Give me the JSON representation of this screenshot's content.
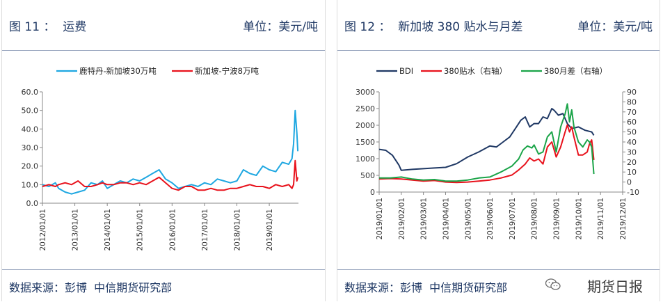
{
  "panels": [
    {
      "title": "图 11 ：  运费",
      "unit": "单位：美元/吨",
      "source": "数据来源：彭博  中信期货研究部"
    },
    {
      "title": "图 12 ：  新加坡 380 贴水与月差",
      "unit": "单位：美元/吨",
      "source": "数据来源：彭博  中信期货研究部"
    }
  ],
  "watermark": {
    "text": "期货日报",
    "icon": "wechat-icon"
  },
  "chart_data": [
    {
      "type": "line",
      "legend_position": "top",
      "grid": false,
      "ylim": [
        0,
        60
      ],
      "yticks": [
        "0.0",
        "10.0",
        "20.0",
        "30.0",
        "40.0",
        "50.0",
        "60.0"
      ],
      "xticks": [
        "2012/01/01",
        "2013/01/01",
        "2014/01/01",
        "2015/01/01",
        "2016/01/01",
        "2017/01/01",
        "2018/01/01",
        "2019/01/01"
      ],
      "xlim": [
        2012.0,
        2019.9
      ],
      "series": [
        {
          "name": "鹿特丹-新加坡30万吨",
          "color": "#1ea7e1",
          "x": [
            2012.0,
            2012.2,
            2012.4,
            2012.5,
            2012.7,
            2012.9,
            2013.1,
            2013.3,
            2013.5,
            2013.7,
            2013.85,
            2014.0,
            2014.2,
            2014.4,
            2014.6,
            2014.8,
            2015.0,
            2015.2,
            2015.4,
            2015.6,
            2015.8,
            2016.0,
            2016.2,
            2016.4,
            2016.6,
            2016.8,
            2017.0,
            2017.2,
            2017.4,
            2017.6,
            2017.8,
            2018.0,
            2018.2,
            2018.4,
            2018.6,
            2018.8,
            2019.0,
            2019.2,
            2019.4,
            2019.6,
            2019.7,
            2019.75,
            2019.8,
            2019.85,
            2019.88
          ],
          "y": [
            10,
            9,
            11,
            8,
            6,
            5,
            6,
            7,
            11,
            10,
            12,
            8,
            10,
            12,
            11,
            13,
            12,
            14,
            16,
            18,
            13,
            11,
            8,
            9,
            10,
            9,
            11,
            10,
            13,
            12,
            11,
            12,
            18,
            16,
            15,
            20,
            18,
            17,
            22,
            21,
            24,
            32,
            50,
            38,
            28
          ]
        },
        {
          "name": "新加坡-宁波8万吨",
          "color": "#e8121c",
          "x": [
            2012.0,
            2012.2,
            2012.4,
            2012.5,
            2012.7,
            2012.9,
            2013.1,
            2013.3,
            2013.5,
            2013.7,
            2013.85,
            2014.0,
            2014.2,
            2014.4,
            2014.6,
            2014.8,
            2015.0,
            2015.2,
            2015.4,
            2015.6,
            2015.8,
            2016.0,
            2016.2,
            2016.4,
            2016.6,
            2016.8,
            2017.0,
            2017.2,
            2017.4,
            2017.6,
            2017.8,
            2018.0,
            2018.2,
            2018.4,
            2018.6,
            2018.8,
            2019.0,
            2019.2,
            2019.4,
            2019.6,
            2019.7,
            2019.75,
            2019.8,
            2019.85,
            2019.88
          ],
          "y": [
            9,
            10,
            9,
            10,
            11,
            10,
            12,
            9,
            9,
            10,
            11,
            10,
            10,
            11,
            11,
            10,
            11,
            10,
            12,
            14,
            11,
            8,
            7,
            9,
            9,
            7,
            7,
            8,
            7,
            7,
            8,
            8,
            9,
            10,
            9,
            9,
            8,
            10,
            9,
            10,
            8,
            10,
            23,
            12,
            14
          ]
        }
      ]
    },
    {
      "type": "line",
      "legend_position": "top",
      "grid": false,
      "ylim": [
        0,
        3000
      ],
      "yticks": [
        "0",
        "500",
        "1000",
        "1500",
        "2000",
        "2500",
        "3000"
      ],
      "y2lim": [
        -10,
        90
      ],
      "y2ticks": [
        "-10",
        "0",
        "10",
        "20",
        "30",
        "40",
        "50",
        "60",
        "70",
        "80",
        "90"
      ],
      "xticks": [
        "2019/01/01",
        "2019/02/01",
        "2019/03/01",
        "2019/04/01",
        "2019/05/01",
        "2019/06/01",
        "2019/07/01",
        "2019/08/01",
        "2019/09/01",
        "2019/10/01",
        "2019/11/01",
        "2019/12/01"
      ],
      "xlim": [
        0,
        11
      ],
      "series": [
        {
          "name": "BDI",
          "color": "#1f3864",
          "axis": "left",
          "x": [
            0,
            0.3,
            0.6,
            0.9,
            1.0,
            1.5,
            2.0,
            2.5,
            3.0,
            3.5,
            4.0,
            4.5,
            5.0,
            5.3,
            5.6,
            5.9,
            6.2,
            6.4,
            6.6,
            6.8,
            7.0,
            7.2,
            7.4,
            7.6,
            7.8,
            7.9,
            8.1,
            8.3,
            8.5,
            8.7,
            9.0,
            9.3,
            9.6,
            9.7
          ],
          "y": [
            1280,
            1250,
            1100,
            800,
            650,
            680,
            700,
            720,
            740,
            850,
            1050,
            1200,
            1380,
            1350,
            1500,
            1650,
            1950,
            2150,
            2250,
            1950,
            2050,
            2050,
            2250,
            2200,
            2500,
            2450,
            2300,
            2350,
            2050,
            1900,
            1950,
            1850,
            1800,
            1700
          ]
        },
        {
          "name": "380贴水（右轴）",
          "color": "#e8121c",
          "axis": "right",
          "x": [
            0,
            0.5,
            1.0,
            1.5,
            2.0,
            2.5,
            3.0,
            3.5,
            4.0,
            4.5,
            5.0,
            5.5,
            6.0,
            6.3,
            6.6,
            6.8,
            7.0,
            7.2,
            7.4,
            7.6,
            7.8,
            8.0,
            8.2,
            8.4,
            8.5,
            8.6,
            8.7,
            8.8,
            9.0,
            9.2,
            9.4,
            9.5,
            9.6,
            9.7
          ],
          "y": [
            3,
            3.5,
            3,
            2,
            1,
            1.5,
            0,
            -0.5,
            0,
            1,
            2,
            4,
            7,
            12,
            18,
            24,
            21,
            23,
            18,
            35,
            40,
            25,
            35,
            50,
            57,
            50,
            55,
            45,
            27,
            27,
            30,
            38,
            42,
            22
          ]
        },
        {
          "name": "380月差（右轴）",
          "color": "#1aa448",
          "axis": "right",
          "x": [
            0,
            0.5,
            1.0,
            1.5,
            2.0,
            2.5,
            3.0,
            3.5,
            4.0,
            4.5,
            5.0,
            5.5,
            6.0,
            6.3,
            6.5,
            6.7,
            6.9,
            7.0,
            7.2,
            7.4,
            7.6,
            7.8,
            8.0,
            8.2,
            8.4,
            8.5,
            8.6,
            8.7,
            8.8,
            9.0,
            9.2,
            9.4,
            9.5,
            9.6,
            9.7
          ],
          "y": [
            4,
            4,
            5,
            3,
            2,
            2.5,
            1,
            1,
            2,
            4,
            5,
            10,
            16,
            23,
            32,
            36,
            34,
            37,
            28,
            30,
            45,
            50,
            30,
            55,
            68,
            78,
            60,
            72,
            55,
            40,
            35,
            42,
            40,
            35,
            8
          ]
        }
      ]
    }
  ]
}
